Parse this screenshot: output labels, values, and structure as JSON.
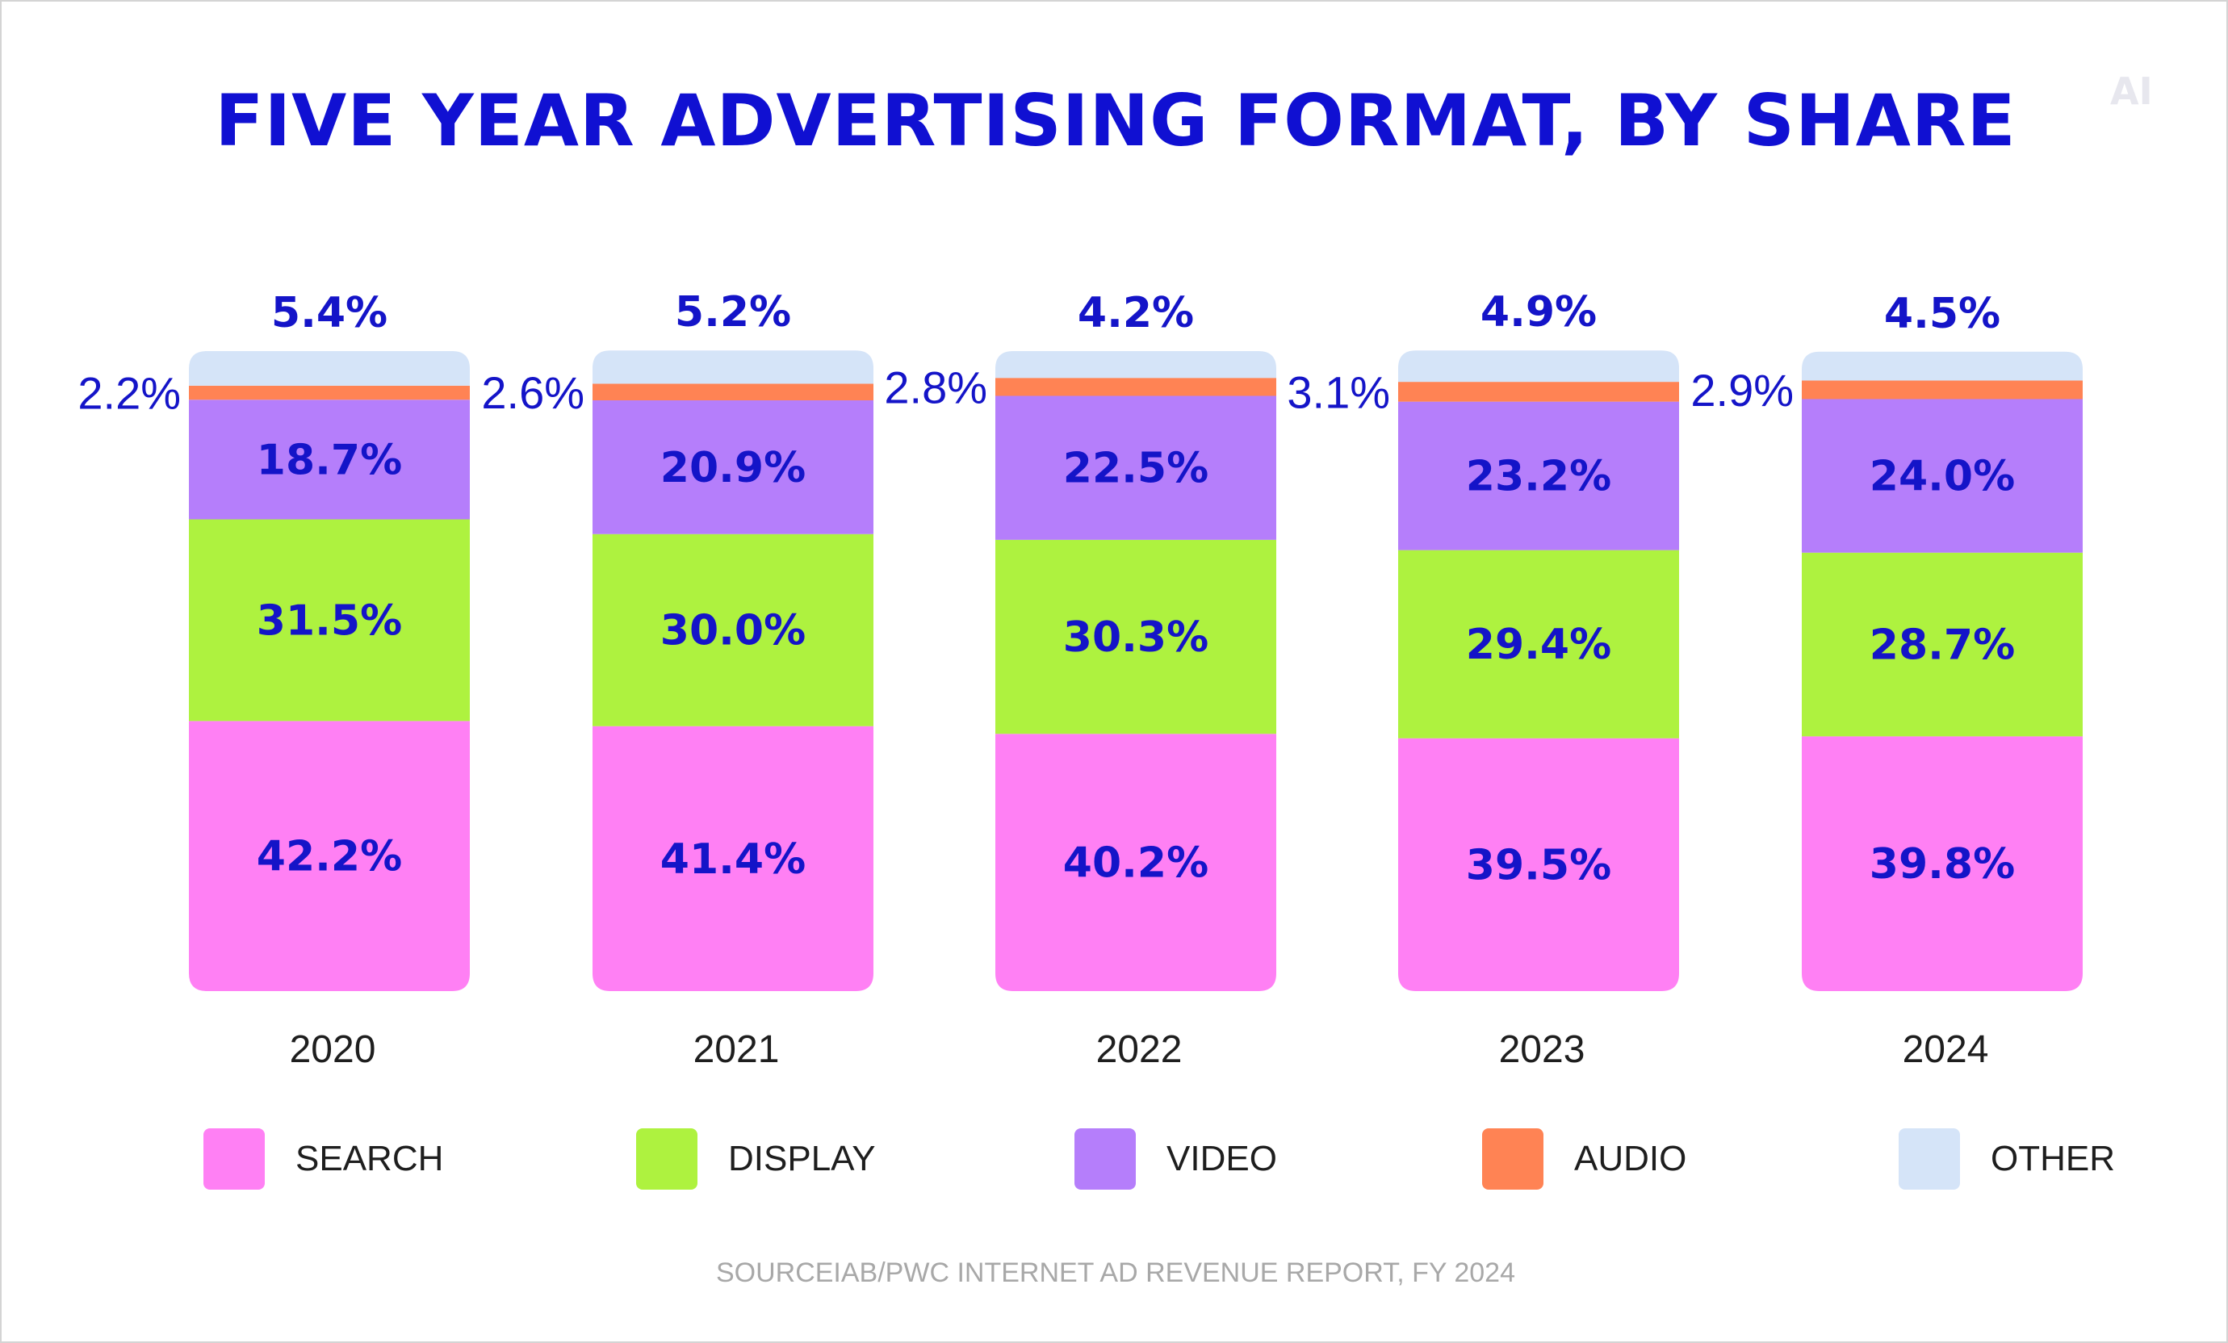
{
  "title": "FIVE YEAR ADVERTISING FORMAT, BY SHARE",
  "logo_text": "AI",
  "source": "SOURCEIAB/PWC INTERNET AD REVENUE REPORT, FY 2024",
  "chart_data": {
    "type": "bar",
    "stacked": true,
    "title": "FIVE YEAR ADVERTISING FORMAT, BY SHARE",
    "unit": "%",
    "categories": [
      "2020",
      "2021",
      "2022",
      "2023",
      "2024"
    ],
    "series": [
      {
        "name": "SEARCH",
        "color": "#ff80f4",
        "values": [
          42.2,
          41.4,
          40.2,
          39.5,
          39.8
        ],
        "labels": [
          "42.2%",
          "41.4%",
          "40.2%",
          "39.5%",
          "39.8%"
        ]
      },
      {
        "name": "DISPLAY",
        "color": "#aef23f",
        "values": [
          31.5,
          30.0,
          30.3,
          29.4,
          28.7
        ],
        "labels": [
          "31.5%",
          "30.0%",
          "30.3%",
          "29.4%",
          "28.7%"
        ]
      },
      {
        "name": "VIDEO",
        "color": "#b57efb",
        "values": [
          18.7,
          20.9,
          22.5,
          23.2,
          24.0
        ],
        "labels": [
          "18.7%",
          "20.9%",
          "22.5%",
          "23.2%",
          "24.0%"
        ]
      },
      {
        "name": "AUDIO",
        "color": "#ff8354",
        "values": [
          2.2,
          2.6,
          2.8,
          3.1,
          2.9
        ],
        "labels": [
          "2.2%",
          "2.6%",
          "2.8%",
          "3.1%",
          "2.9%"
        ]
      },
      {
        "name": "OTHER",
        "color": "#d5e4f8",
        "values": [
          5.4,
          5.2,
          4.2,
          4.9,
          4.5
        ],
        "labels": [
          "5.4%",
          "5.2%",
          "4.2%",
          "4.9%",
          "4.5%"
        ]
      }
    ],
    "legend_position": "bottom",
    "grid": false
  }
}
